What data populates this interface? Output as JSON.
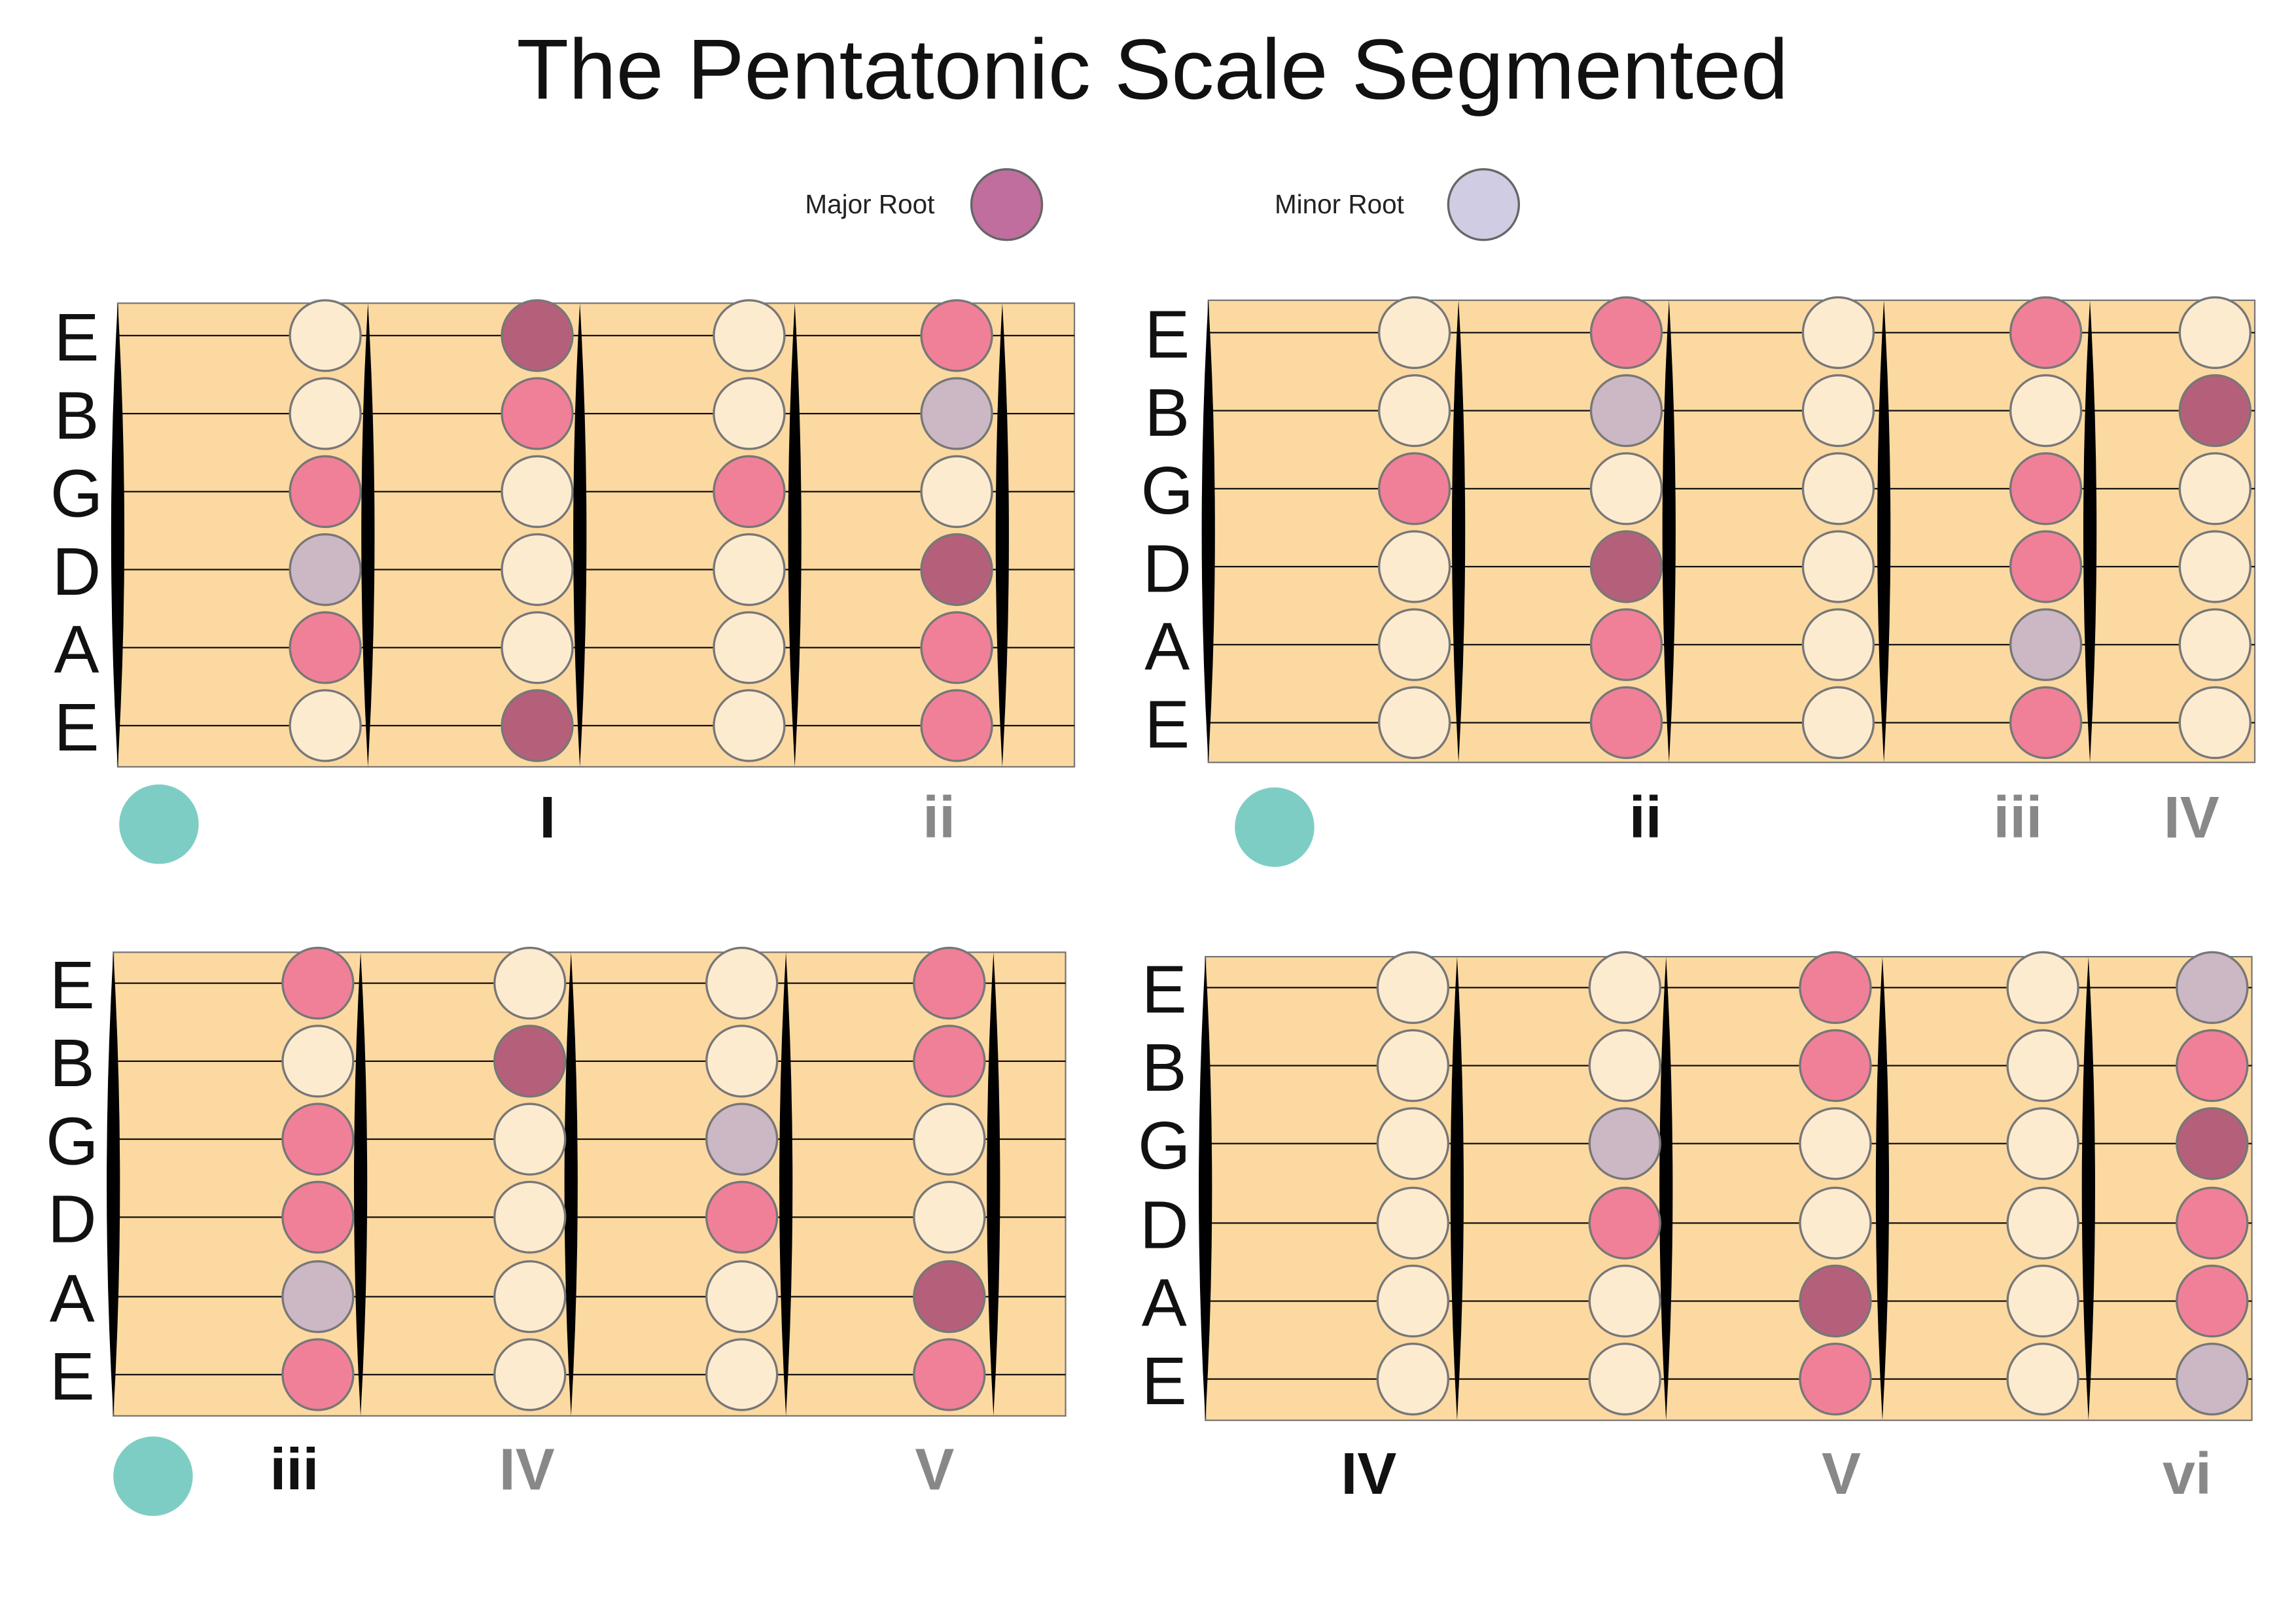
{
  "title": "The Pentatonic Scale Segmented",
  "legend": [
    "Major Root",
    "Minor Root"
  ],
  "panels": [
    {
      "strings": [
        "E",
        "B",
        "G",
        "D",
        "A",
        "E"
      ],
      "numerals": [
        "I",
        "ii"
      ]
    },
    {
      "strings": [
        "E",
        "B",
        "G",
        "D",
        "A",
        "E"
      ],
      "numerals": [
        "ii",
        "iii",
        "IV"
      ]
    },
    {
      "strings": [
        "E",
        "B",
        "G",
        "D",
        "A",
        "E"
      ],
      "numerals": [
        "iii",
        "IV",
        "V"
      ]
    },
    {
      "strings": [
        "E",
        "B",
        "G",
        "D",
        "A",
        "E"
      ],
      "numerals": [
        "IV",
        "V",
        "vi"
      ]
    }
  ]
}
